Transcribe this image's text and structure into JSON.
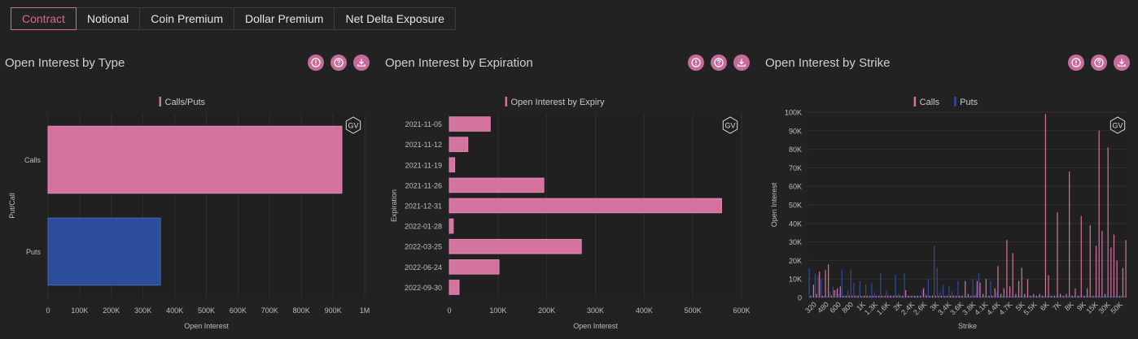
{
  "tabs": [
    {
      "label": "Contract",
      "active": true
    },
    {
      "label": "Notional",
      "active": false
    },
    {
      "label": "Coin Premium",
      "active": false
    },
    {
      "label": "Dollar Premium",
      "active": false
    },
    {
      "label": "Net Delta Exposure",
      "active": false
    }
  ],
  "colors": {
    "calls": "#d4739d",
    "puts": "#2c4d9c",
    "icon_bg": "#c76c98",
    "grid": "#2f2f2f"
  },
  "icons": [
    "info-icon",
    "help-icon",
    "download-icon"
  ],
  "watermark": "GV",
  "panels": {
    "type": {
      "title": "Open Interest by Type"
    },
    "expiration": {
      "title": "Open Interest by Expiration"
    },
    "strike": {
      "title": "Open Interest by Strike"
    }
  },
  "chart_data": [
    {
      "id": "type",
      "type": "bar",
      "orientation": "horizontal",
      "legend": [
        "Calls/Puts"
      ],
      "legend_position": "top-center",
      "xlabel": "Open Interest",
      "ylabel": "Put/Call",
      "xlim": [
        0,
        1000000
      ],
      "xticks": [
        "0",
        "100K",
        "200K",
        "300K",
        "400K",
        "500K",
        "600K",
        "700K",
        "800K",
        "900K",
        "1M"
      ],
      "categories": [
        "Calls",
        "Puts"
      ],
      "values": [
        928000,
        355000
      ],
      "bar_colors": [
        "#d4739d",
        "#2c4d9c"
      ]
    },
    {
      "id": "expiration",
      "type": "bar",
      "orientation": "horizontal",
      "legend": [
        "Open Interest by Expiry"
      ],
      "legend_position": "top-center",
      "xlabel": "Open Interest",
      "ylabel": "Expiration",
      "xlim": [
        0,
        600000
      ],
      "xticks": [
        "0",
        "100K",
        "200K",
        "300K",
        "400K",
        "500K",
        "600K"
      ],
      "categories": [
        "2021-11-05",
        "2021-11-12",
        "2021-11-19",
        "2021-11-26",
        "2021-12-31",
        "2022-01-28",
        "2022-03-25",
        "2022-06-24",
        "2022-09-30"
      ],
      "values": [
        84000,
        38000,
        11000,
        194000,
        559000,
        8000,
        271000,
        102000,
        20000
      ]
    },
    {
      "id": "strike",
      "type": "bar",
      "legend": [
        "Calls",
        "Puts"
      ],
      "legend_position": "top-center",
      "xlabel": "Strike",
      "ylabel": "Open Interest",
      "ylim": [
        0,
        100000
      ],
      "yticks": [
        "0",
        "10K",
        "20K",
        "30K",
        "40K",
        "50K",
        "60K",
        "70K",
        "80K",
        "90K",
        "100K"
      ],
      "xticks": [
        "320",
        "480",
        "600",
        "800",
        "1K",
        "1.3K",
        "1.6K",
        "2K",
        "2.4K",
        "2.6K",
        "3K",
        "3.4K",
        "3.6K",
        "3.8K",
        "4.1K",
        "4.4K",
        "4.7K",
        "5K",
        "5.5K",
        "6K",
        "7K",
        "8K",
        "9K",
        "15K",
        "30K",
        "50K"
      ],
      "series": [
        {
          "name": "Calls",
          "values": [
            1000,
            7000,
            2000,
            14000,
            1000,
            15000,
            18000,
            1000,
            4000,
            5000,
            6000,
            1000,
            1000,
            1000,
            1000,
            1000,
            1000,
            1000,
            1000,
            1000,
            1000,
            1000,
            1000,
            1000,
            1000,
            1000,
            1000,
            1000,
            1000,
            1000,
            1000,
            1000,
            4000,
            1000,
            1000,
            1000,
            1000,
            1000,
            5000,
            1000,
            1000,
            1000,
            1000,
            1000,
            1000,
            1000,
            1000,
            1000,
            1000,
            1000,
            1000,
            1000,
            9000,
            2000,
            1000,
            1000,
            9000,
            8000,
            2000,
            10000,
            1000,
            1000,
            5000,
            17000,
            2000,
            5000,
            31000,
            6000,
            24000,
            2000,
            9000,
            16000,
            2000,
            10000,
            1000,
            2000,
            1000,
            2000,
            1000,
            99000,
            12000,
            1000,
            1000,
            46000,
            2000,
            1000,
            2000,
            68000,
            1000,
            5000,
            1000,
            44000,
            1000,
            5000,
            39000,
            1000,
            28000,
            90000,
            36000,
            2000,
            81000,
            27000,
            34000,
            20000,
            1000,
            16000,
            31000
          ]
        },
        {
          "name": "Puts",
          "values": [
            16000,
            1000,
            13000,
            12000,
            10000,
            1000,
            1000,
            3000,
            6000,
            4000,
            2000,
            15000,
            1000,
            4000,
            15000,
            8000,
            1000,
            9000,
            1000,
            7000,
            1000,
            8000,
            3000,
            1000,
            13000,
            1000,
            4000,
            1000,
            1000,
            12000,
            2000,
            1000,
            13000,
            1000,
            1000,
            1000,
            1000,
            1000,
            4000,
            2000,
            10000,
            1000,
            28000,
            16000,
            3000,
            7000,
            1000,
            6000,
            3000,
            1000,
            9000,
            1000,
            1000,
            1000,
            1000,
            10000,
            2000,
            13000,
            1000,
            1000,
            1000,
            9000,
            1000,
            3000,
            1000,
            1000,
            1000,
            1000,
            1000,
            1000,
            1000,
            1000,
            1000,
            1000,
            1000,
            1000,
            1000,
            1000,
            1000,
            1000,
            1000,
            1000,
            1000,
            1000,
            1000,
            1000,
            1000,
            1000,
            1000,
            1000,
            1000,
            1000,
            1000,
            1000,
            1000,
            1000,
            1000,
            1000,
            1000,
            1000,
            1000,
            1000,
            1000,
            1000,
            1000,
            1000,
            1000
          ]
        }
      ]
    }
  ]
}
